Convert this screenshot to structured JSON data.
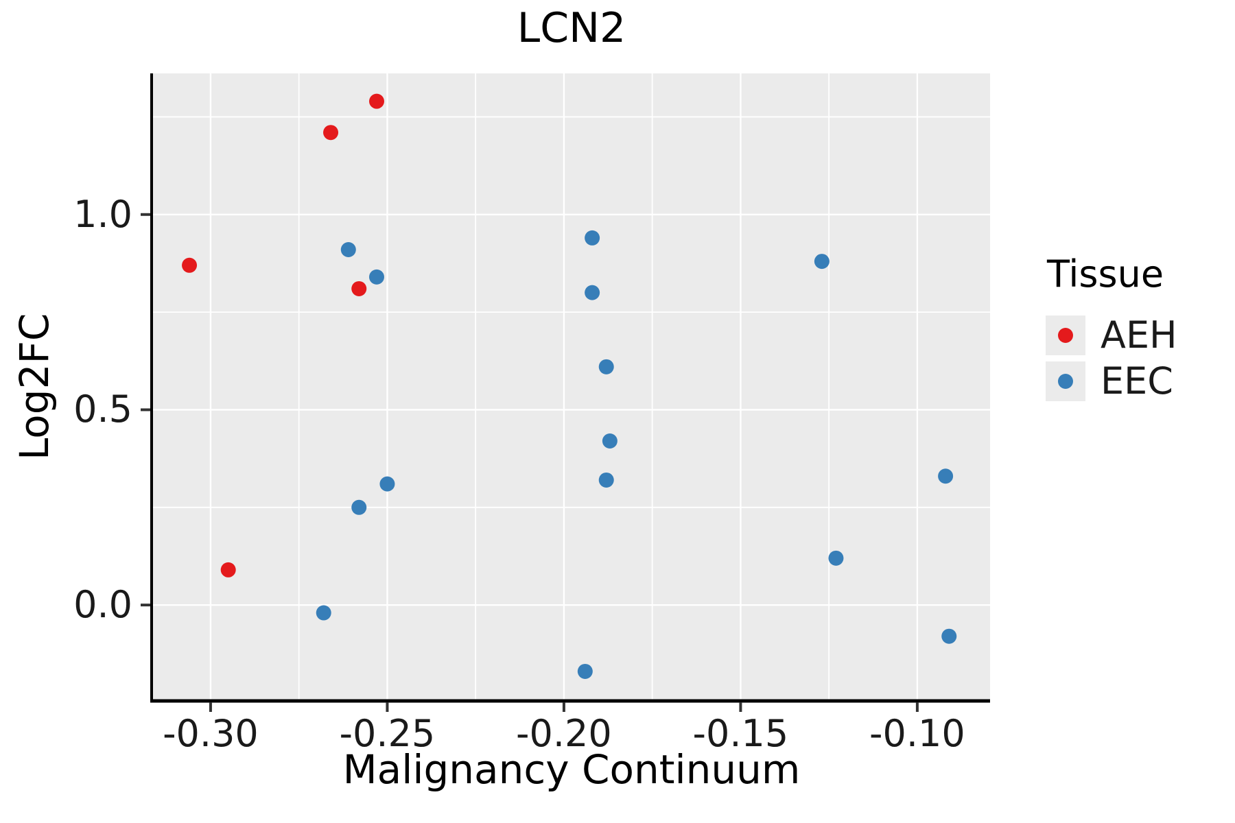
{
  "title": "LCN2",
  "axes": {
    "x": {
      "label": "Malignancy Continuum",
      "tick_labels": [
        "-0.30",
        "-0.25",
        "-0.20",
        "-0.15",
        "-0.10"
      ],
      "tick_values": [
        -0.3,
        -0.25,
        -0.2,
        -0.15,
        -0.1
      ],
      "minor_tick_values": [
        -0.275,
        -0.225,
        -0.175,
        -0.125
      ]
    },
    "y": {
      "label": "Log2FC",
      "tick_labels": [
        "0.0",
        "0.5",
        "1.0"
      ],
      "tick_values": [
        0.0,
        0.5,
        1.0
      ],
      "minor_tick_values": [
        0.25,
        0.75,
        1.25
      ]
    }
  },
  "legend": {
    "title": "Tissue",
    "entries": [
      {
        "label": "AEH",
        "color": "#E41A1C"
      },
      {
        "label": "EEC",
        "color": "#377EB8"
      }
    ]
  },
  "chart_data": {
    "type": "scatter",
    "title": "LCN2",
    "xlabel": "Malignancy Continuum",
    "ylabel": "Log2FC",
    "xlim": [
      -0.3163,
      -0.0794
    ],
    "ylim": [
      -0.2421,
      1.3614
    ],
    "grid": "on",
    "legend_position": "right",
    "point_radius_px": 11,
    "series": [
      {
        "name": "AEH",
        "color": "#E41A1C",
        "points": [
          [
            -0.253,
            1.29
          ],
          [
            -0.266,
            1.21
          ],
          [
            -0.306,
            0.87
          ],
          [
            -0.258,
            0.81
          ],
          [
            -0.295,
            0.09
          ]
        ]
      },
      {
        "name": "EEC",
        "color": "#377EB8",
        "points": [
          [
            -0.261,
            0.91
          ],
          [
            -0.253,
            0.84
          ],
          [
            -0.25,
            0.31
          ],
          [
            -0.258,
            0.25
          ],
          [
            -0.268,
            -0.02
          ],
          [
            -0.192,
            0.94
          ],
          [
            -0.192,
            0.8
          ],
          [
            -0.188,
            0.61
          ],
          [
            -0.187,
            0.42
          ],
          [
            -0.188,
            0.32
          ],
          [
            -0.194,
            -0.17
          ],
          [
            -0.127,
            0.88
          ],
          [
            -0.092,
            0.33
          ],
          [
            -0.123,
            0.12
          ],
          [
            -0.091,
            -0.08
          ]
        ]
      }
    ]
  },
  "style": {
    "panel_bg": "#EBEBEB",
    "grid_color": "#FFFFFF",
    "axis_line_color": "#000000",
    "tick_color": "#333333"
  }
}
